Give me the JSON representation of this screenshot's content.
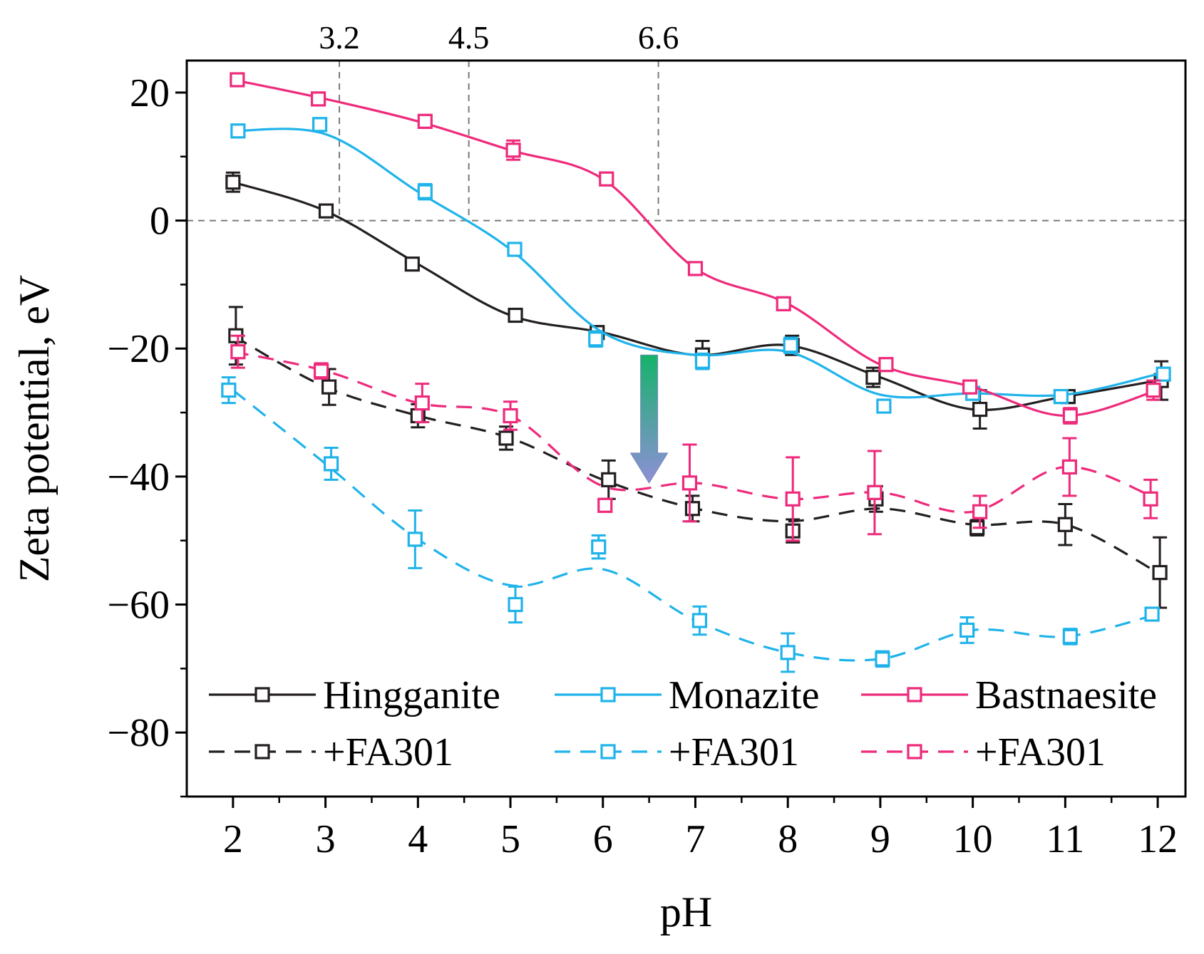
{
  "chart_data": {
    "type": "line",
    "title": "",
    "xlabel": "pH",
    "ylabel": "Zeta potential, eV",
    "xlim": [
      1.5,
      12.3
    ],
    "ylim": [
      -90,
      25
    ],
    "xticks": [
      2,
      3,
      4,
      5,
      6,
      7,
      8,
      9,
      10,
      11,
      12
    ],
    "yticks": [
      20,
      0,
      -20,
      -40,
      -60,
      -80
    ],
    "ytick_labels": [
      "20",
      "0",
      "−20",
      "−40",
      "−60",
      "−80"
    ],
    "grid": false,
    "legend_position": "bottom-left",
    "reference_lines": {
      "zero_line_y": 0,
      "vertical_marks": [
        {
          "x": 3.15,
          "label": "3.2"
        },
        {
          "x": 4.55,
          "label": "4.5"
        },
        {
          "x": 6.6,
          "label": "6.6"
        }
      ]
    },
    "annotation": {
      "type": "down-arrow",
      "x": 6.5,
      "y_from": -21,
      "y_to": -41
    },
    "series": [
      {
        "name": "Hingganite",
        "color": "#231f20",
        "dash": "solid",
        "x": [
          2,
          3,
          4,
          5,
          6,
          7,
          8,
          9,
          10,
          11,
          12
        ],
        "y": [
          6,
          1.5,
          -6.8,
          -14.8,
          -17.5,
          -21,
          -19.5,
          -24.5,
          -29.5,
          -27.5,
          -25
        ],
        "err": [
          1.5,
          0.8,
          0.8,
          1,
          1,
          2.2,
          1.5,
          1.5,
          3,
          1,
          3
        ],
        "curve_offset": [
          0,
          0,
          0,
          0,
          0,
          0,
          0,
          0,
          0,
          0,
          0
        ]
      },
      {
        "name": "Monazite",
        "color": "#1fb3ea",
        "dash": "solid",
        "x": [
          2,
          3,
          4,
          5,
          6,
          7,
          8,
          9,
          10,
          11,
          12
        ],
        "y": [
          14,
          15,
          4.5,
          -4.5,
          -18.5,
          -22,
          -19.5,
          -29,
          -27,
          -27.5,
          -24
        ],
        "err": [
          1,
          1,
          1.2,
          1,
          1.2,
          1.2,
          1.2,
          1,
          1,
          1,
          1
        ],
        "curve_offset": [
          0,
          -1.5,
          0,
          0,
          1,
          1,
          -1,
          1.8,
          0,
          0.3,
          0
        ]
      },
      {
        "name": "Bastnaesite",
        "color": "#ee2a7b",
        "dash": "solid",
        "x": [
          2,
          3,
          4,
          5,
          6,
          7,
          8,
          9,
          10,
          11,
          12
        ],
        "y": [
          22,
          19,
          15.5,
          11,
          6.5,
          -7.5,
          -13,
          -22.5,
          -26,
          -30.5,
          -26.5
        ],
        "err": [
          1,
          1,
          1,
          1.5,
          1,
          1,
          1,
          1,
          1,
          1.2,
          1.5
        ],
        "curve_offset": [
          0,
          0,
          0,
          0,
          0,
          0,
          0,
          0,
          0,
          0,
          0
        ]
      },
      {
        "name": "+FA301",
        "group": "Hingganite",
        "color": "#231f20",
        "dash": "dashed",
        "x": [
          2,
          3,
          4,
          5,
          6,
          7,
          8,
          9,
          10,
          11,
          12
        ],
        "y": [
          -18,
          -26,
          -30.5,
          -34,
          -40.5,
          -45,
          -48.5,
          -43.5,
          -48,
          -47.5,
          -55
        ],
        "err": [
          4.5,
          2.8,
          1.8,
          1.8,
          3,
          2,
          1.8,
          2,
          1.2,
          3.2,
          5.5
        ],
        "curve_offset": [
          0,
          0,
          0,
          0,
          0,
          0,
          1.5,
          -1.5,
          0.5,
          0,
          0
        ]
      },
      {
        "name": "+FA301",
        "group": "Monazite",
        "color": "#1fb3ea",
        "dash": "dashed",
        "x": [
          2,
          3,
          4,
          5,
          6,
          7,
          8,
          9,
          10,
          11,
          12
        ],
        "y": [
          -26.5,
          -38,
          -49.8,
          -60,
          -51,
          -62.5,
          -67.5,
          -68.5,
          -64,
          -65,
          -61.5
        ],
        "err": [
          2,
          2.5,
          4.5,
          2.8,
          1.8,
          2.2,
          3,
          1.2,
          2,
          1.2,
          1
        ],
        "curve_offset": [
          0,
          0,
          0,
          3,
          -3.5,
          0,
          0,
          0,
          0,
          0,
          0
        ]
      },
      {
        "name": "+FA301",
        "group": "Bastnaesite",
        "color": "#ee2a7b",
        "dash": "dashed",
        "x": [
          2,
          3,
          4,
          5,
          6,
          7,
          8,
          9,
          10,
          11,
          12
        ],
        "y": [
          -20.5,
          -23.5,
          -28.5,
          -30.5,
          -44.5,
          -41,
          -43.5,
          -42.5,
          -45.5,
          -38.5,
          -43.5
        ],
        "err": [
          2.5,
          1.2,
          3,
          2.2,
          1,
          6,
          6.5,
          6.5,
          2.5,
          4.5,
          3
        ],
        "curve_offset": [
          0,
          0,
          0,
          0,
          3,
          0,
          0,
          0,
          0,
          0,
          0
        ]
      }
    ],
    "legend": [
      [
        "Hingganite",
        "Monazite",
        "Bastnaesite"
      ],
      [
        "+FA301",
        "+FA301",
        "+FA301"
      ]
    ]
  }
}
